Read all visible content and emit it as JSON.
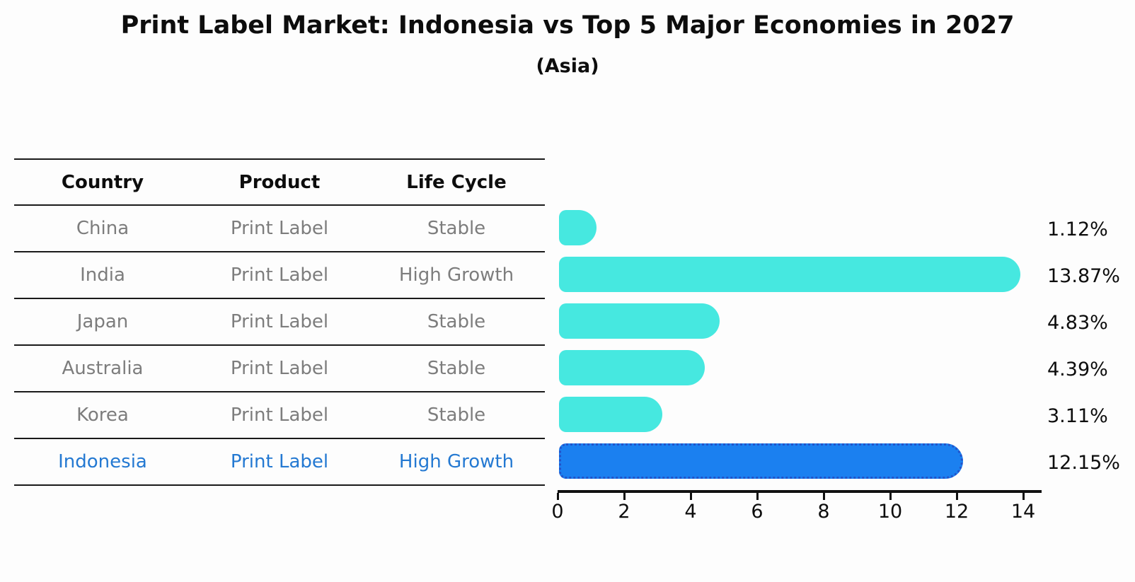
{
  "title": "Print Label Market: Indonesia vs Top 5 Major Economies in 2027",
  "subtitle": "(Asia)",
  "colors": {
    "bar_default": "#46E8E0",
    "bar_highlight": "#1B80F0",
    "bar_highlight_border": "#2353C9",
    "table_row_text": "#7D7D7D",
    "highlight_row_text": "#2479D2"
  },
  "table": {
    "columns": [
      "Country",
      "Product",
      "Life Cycle"
    ],
    "rows": [
      {
        "country": "China",
        "product": "Print Label",
        "life_cycle": "Stable",
        "highlight": false
      },
      {
        "country": "India",
        "product": "Print Label",
        "life_cycle": "High Growth",
        "highlight": false
      },
      {
        "country": "Japan",
        "product": "Print Label",
        "life_cycle": "Stable",
        "highlight": false
      },
      {
        "country": "Australia",
        "product": "Print Label",
        "life_cycle": "Stable",
        "highlight": false
      },
      {
        "country": "Korea",
        "product": "Print Label",
        "life_cycle": "Stable",
        "highlight": false
      },
      {
        "country": "Indonesia",
        "product": "Print Label",
        "life_cycle": "High Growth",
        "highlight": true
      }
    ]
  },
  "chart_data": {
    "type": "bar",
    "orientation": "horizontal",
    "title": "Print Label Market: Indonesia vs Top 5 Major Economies in 2027",
    "subtitle": "(Asia)",
    "categories": [
      "China",
      "India",
      "Japan",
      "Australia",
      "Korea",
      "Indonesia"
    ],
    "values": [
      1.12,
      13.87,
      4.83,
      4.39,
      3.11,
      12.15
    ],
    "labels": [
      "1.12%",
      "13.87%",
      "4.83%",
      "4.39%",
      "3.11%",
      "12.15%"
    ],
    "unit": "%",
    "highlight_index": 5,
    "x_ticks": [
      "0",
      "2",
      "4",
      "6",
      "8",
      "10",
      "12",
      "14"
    ],
    "xlim": [
      0,
      14.55
    ],
    "grid": false,
    "legend": "none"
  }
}
